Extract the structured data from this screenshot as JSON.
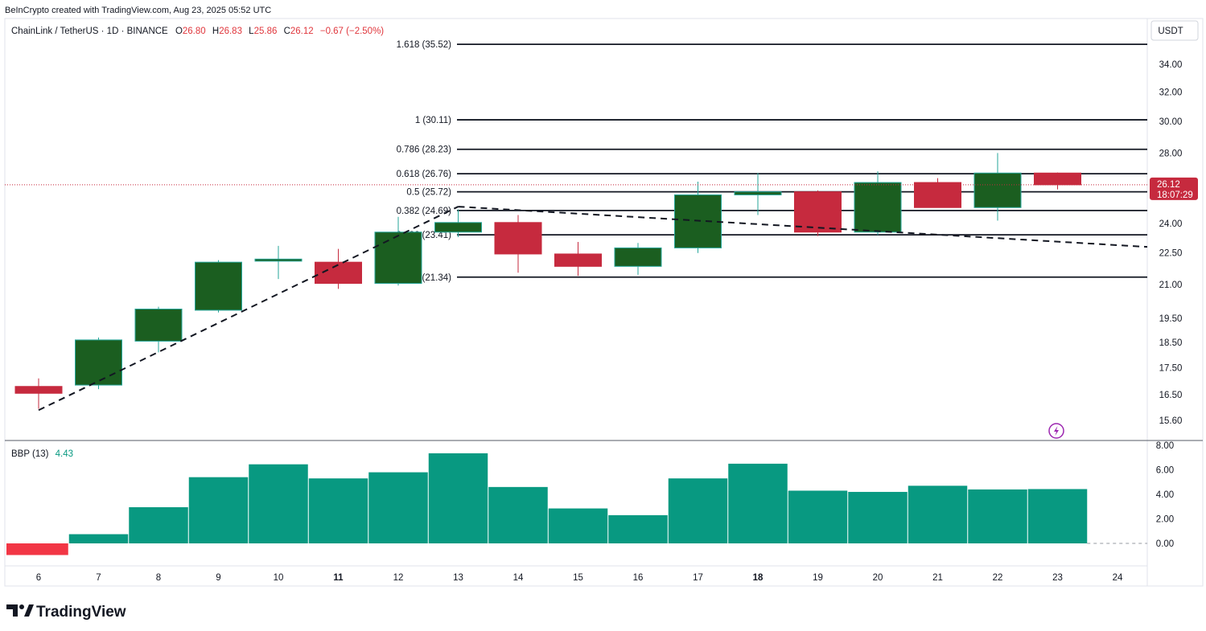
{
  "header": {
    "attribution": "BeInCrypto created with TradingView.com, Aug 23, 2025 05:52 UTC",
    "symbol": "ChainLink / TetherUS · 1D · BINANCE",
    "o_label": "O",
    "o_value": "26.80",
    "h_label": "H",
    "h_value": "26.83",
    "l_label": "L",
    "l_value": "25.86",
    "c_label": "C",
    "c_value": "26.12",
    "change": "−0.67 (−2.50%)"
  },
  "price_axis": {
    "currency": "USDT",
    "last_price": "26.12",
    "countdown": "18:07:29"
  },
  "indicator": {
    "name": "BBP (13)",
    "value": "4.43"
  },
  "branding": {
    "logo_text": "TradingView"
  },
  "colors": {
    "up": "#1b5e20",
    "up_border": "#26a69a",
    "down": "#c62a3e",
    "teal": "#089981",
    "red": "#f23645",
    "line": "#131722",
    "grid_border": "#d1d4dc",
    "axis_text": "#131722",
    "header_red": "#e0363c"
  },
  "chart_data": [
    {
      "type": "candlestick",
      "title": "ChainLink / TetherUS · 1D · BINANCE",
      "x": [
        "6",
        "7",
        "8",
        "9",
        "10",
        "11",
        "12",
        "13",
        "14",
        "15",
        "16",
        "17",
        "18",
        "19",
        "20",
        "21",
        "22",
        "23"
      ],
      "xticks": [
        "6",
        "7",
        "8",
        "9",
        "10",
        "11",
        "12",
        "13",
        "14",
        "15",
        "16",
        "17",
        "18",
        "19",
        "20",
        "21",
        "22",
        "23",
        "24"
      ],
      "xticks_bold": [
        "11",
        "18"
      ],
      "series": [
        {
          "open": [
            16.8,
            16.85,
            18.55,
            19.85,
            22.1,
            22.05,
            21.05,
            23.55,
            24.05,
            22.45,
            21.85,
            22.75,
            25.55,
            25.72,
            23.55,
            26.25,
            24.85,
            26.8
          ],
          "high": [
            17.1,
            18.7,
            20.0,
            22.15,
            22.85,
            22.7,
            24.35,
            24.75,
            24.45,
            23.05,
            23.0,
            26.3,
            26.8,
            25.8,
            26.9,
            26.5,
            28.0,
            26.83
          ],
          "low": [
            16.0,
            16.7,
            18.1,
            19.75,
            21.25,
            20.8,
            20.95,
            23.3,
            21.55,
            21.4,
            21.45,
            22.5,
            24.45,
            23.35,
            23.4,
            24.85,
            24.15,
            25.86
          ],
          "close": [
            16.55,
            18.6,
            19.9,
            22.05,
            22.2,
            21.05,
            23.55,
            24.05,
            22.45,
            21.85,
            22.75,
            25.55,
            25.72,
            23.55,
            26.25,
            24.85,
            26.8,
            26.12
          ]
        }
      ],
      "yticks": [
        "34.00",
        "32.00",
        "30.00",
        "28.00",
        "24.00",
        "22.50",
        "21.00",
        "19.50",
        "18.50",
        "17.50",
        "16.50",
        "15.60"
      ],
      "y_scale": "log",
      "fib_levels": [
        {
          "label": "1.618 (35.52)",
          "value": 35.52
        },
        {
          "label": "1 (30.11)",
          "value": 30.11
        },
        {
          "label": "0.786 (28.23)",
          "value": 28.23
        },
        {
          "label": "0.618 (26.76)",
          "value": 26.76
        },
        {
          "label": "0.5 (25.72)",
          "value": 25.72
        },
        {
          "label": "0.382 (24.69)",
          "value": 24.69
        },
        {
          "label": "0.236 (23.41)",
          "value": 23.41
        },
        {
          "label": "0 (21.34)",
          "value": 21.34
        }
      ],
      "trendlines": [
        {
          "style": "dashed",
          "from": {
            "x": "6",
            "y": 15.95
          },
          "to": {
            "x": "13",
            "y": 24.9
          }
        },
        {
          "style": "dashed",
          "from": {
            "x": "13",
            "y": 24.9
          },
          "to": {
            "x": "24.5",
            "y": 22.8
          }
        }
      ],
      "last_price": 26.12
    },
    {
      "type": "bar",
      "title": "BBP (13)",
      "categories": [
        "6",
        "7",
        "8",
        "9",
        "10",
        "11",
        "12",
        "13",
        "14",
        "15",
        "16",
        "17",
        "18",
        "19",
        "20",
        "21",
        "22",
        "23"
      ],
      "values": [
        -0.95,
        0.75,
        2.95,
        5.4,
        6.45,
        5.3,
        5.8,
        7.35,
        4.6,
        2.85,
        2.3,
        5.3,
        6.5,
        4.3,
        4.2,
        4.7,
        4.4,
        4.43
      ],
      "yticks": [
        "8.00",
        "6.00",
        "4.00",
        "2.00",
        "0.00"
      ],
      "ylim": [
        -1.3,
        8.0
      ]
    }
  ]
}
